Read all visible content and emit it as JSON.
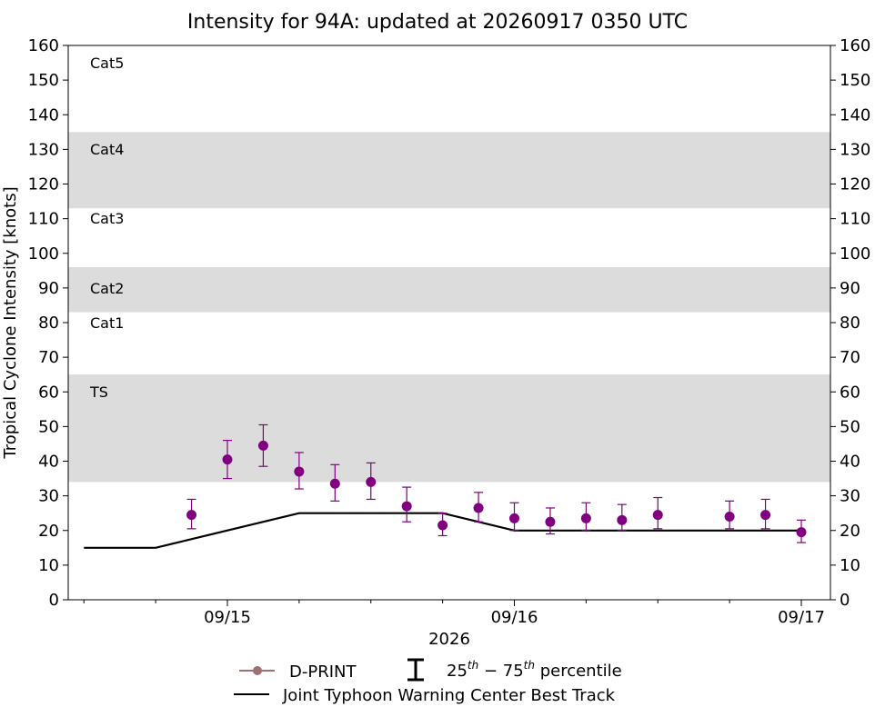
{
  "chart_data": {
    "type": "scatter",
    "title": "Intensity for 94A: updated at 20260917 0350 UTC",
    "xlabel": "2026",
    "ylabel": "Tropical Cyclone Intensity [knots]",
    "ylim": [
      0,
      160
    ],
    "yticks": [
      0,
      10,
      20,
      30,
      40,
      50,
      60,
      70,
      80,
      90,
      100,
      110,
      120,
      130,
      140,
      150,
      160
    ],
    "xlim_days": [
      -0.5,
      2.0
    ],
    "xticks": [
      {
        "t": 0,
        "label": "09/15"
      },
      {
        "t": 1,
        "label": "09/16"
      },
      {
        "t": 2,
        "label": "09/17"
      }
    ],
    "minor_xticks": [
      -0.5,
      -0.25,
      0.25,
      0.5,
      0.75,
      1.25,
      1.5,
      1.75
    ],
    "grid": false,
    "categories": [
      {
        "label": "Cat5",
        "min": 137,
        "max": 160,
        "shaded": false
      },
      {
        "label": "Cat4",
        "min": 113,
        "max": 135,
        "shaded": true
      },
      {
        "label": "Cat3",
        "min": 96,
        "max": 113,
        "shaded": false
      },
      {
        "label": "Cat2",
        "min": 83,
        "max": 96,
        "shaded": true
      },
      {
        "label": "Cat1",
        "min": 64,
        "max": 83,
        "shaded": false
      },
      {
        "label": "TS",
        "min": 34,
        "max": 65,
        "shaded": true
      }
    ],
    "series": [
      {
        "name": "D-PRINT",
        "kind": "points_with_errorbars",
        "color": "#800080",
        "legend_color": "#9e7070",
        "points": [
          {
            "t": -0.125,
            "y": 24.5,
            "lo": 20.5,
            "hi": 29
          },
          {
            "t": 0.0,
            "y": 40.5,
            "lo": 35,
            "hi": 46
          },
          {
            "t": 0.125,
            "y": 44.5,
            "lo": 38.5,
            "hi": 50.5
          },
          {
            "t": 0.25,
            "y": 37,
            "lo": 32,
            "hi": 42.5
          },
          {
            "t": 0.375,
            "y": 33.5,
            "lo": 28.5,
            "hi": 39
          },
          {
            "t": 0.5,
            "y": 34,
            "lo": 29,
            "hi": 39.5
          },
          {
            "t": 0.625,
            "y": 27,
            "lo": 22.5,
            "hi": 32.5
          },
          {
            "t": 0.75,
            "y": 21.5,
            "lo": 18.5,
            "hi": 25
          },
          {
            "t": 0.875,
            "y": 26.5,
            "lo": 22.5,
            "hi": 31
          },
          {
            "t": 1.0,
            "y": 23.5,
            "lo": 20,
            "hi": 28
          },
          {
            "t": 1.125,
            "y": 22.5,
            "lo": 19,
            "hi": 26.5
          },
          {
            "t": 1.25,
            "y": 23.5,
            "lo": 20,
            "hi": 28
          },
          {
            "t": 1.375,
            "y": 23,
            "lo": 20,
            "hi": 27.5
          },
          {
            "t": 1.5,
            "y": 24.5,
            "lo": 20.5,
            "hi": 29.5
          },
          {
            "t": 1.75,
            "y": 24,
            "lo": 20.5,
            "hi": 28.5
          },
          {
            "t": 1.875,
            "y": 24.5,
            "lo": 20.5,
            "hi": 29
          },
          {
            "t": 2.0,
            "y": 19.5,
            "lo": 16.5,
            "hi": 23
          }
        ]
      },
      {
        "name": "Joint Typhoon Warning Center Best Track",
        "kind": "line",
        "color": "#000000",
        "points": [
          {
            "t": -0.5,
            "y": 15
          },
          {
            "t": -0.25,
            "y": 15
          },
          {
            "t": 0.25,
            "y": 25
          },
          {
            "t": 0.75,
            "y": 25
          },
          {
            "t": 1.0,
            "y": 20
          },
          {
            "t": 2.0,
            "y": 20
          }
        ]
      }
    ],
    "legend": {
      "placement": "bottom-center",
      "dprint_label": "D-PRINT",
      "percentile_base": "25",
      "percentile_sup1": "th",
      "percentile_dash": " − 75",
      "percentile_sup2": "th",
      "percentile_tail": " percentile",
      "besttrack_label": "Joint Typhoon Warning Center Best Track"
    }
  }
}
